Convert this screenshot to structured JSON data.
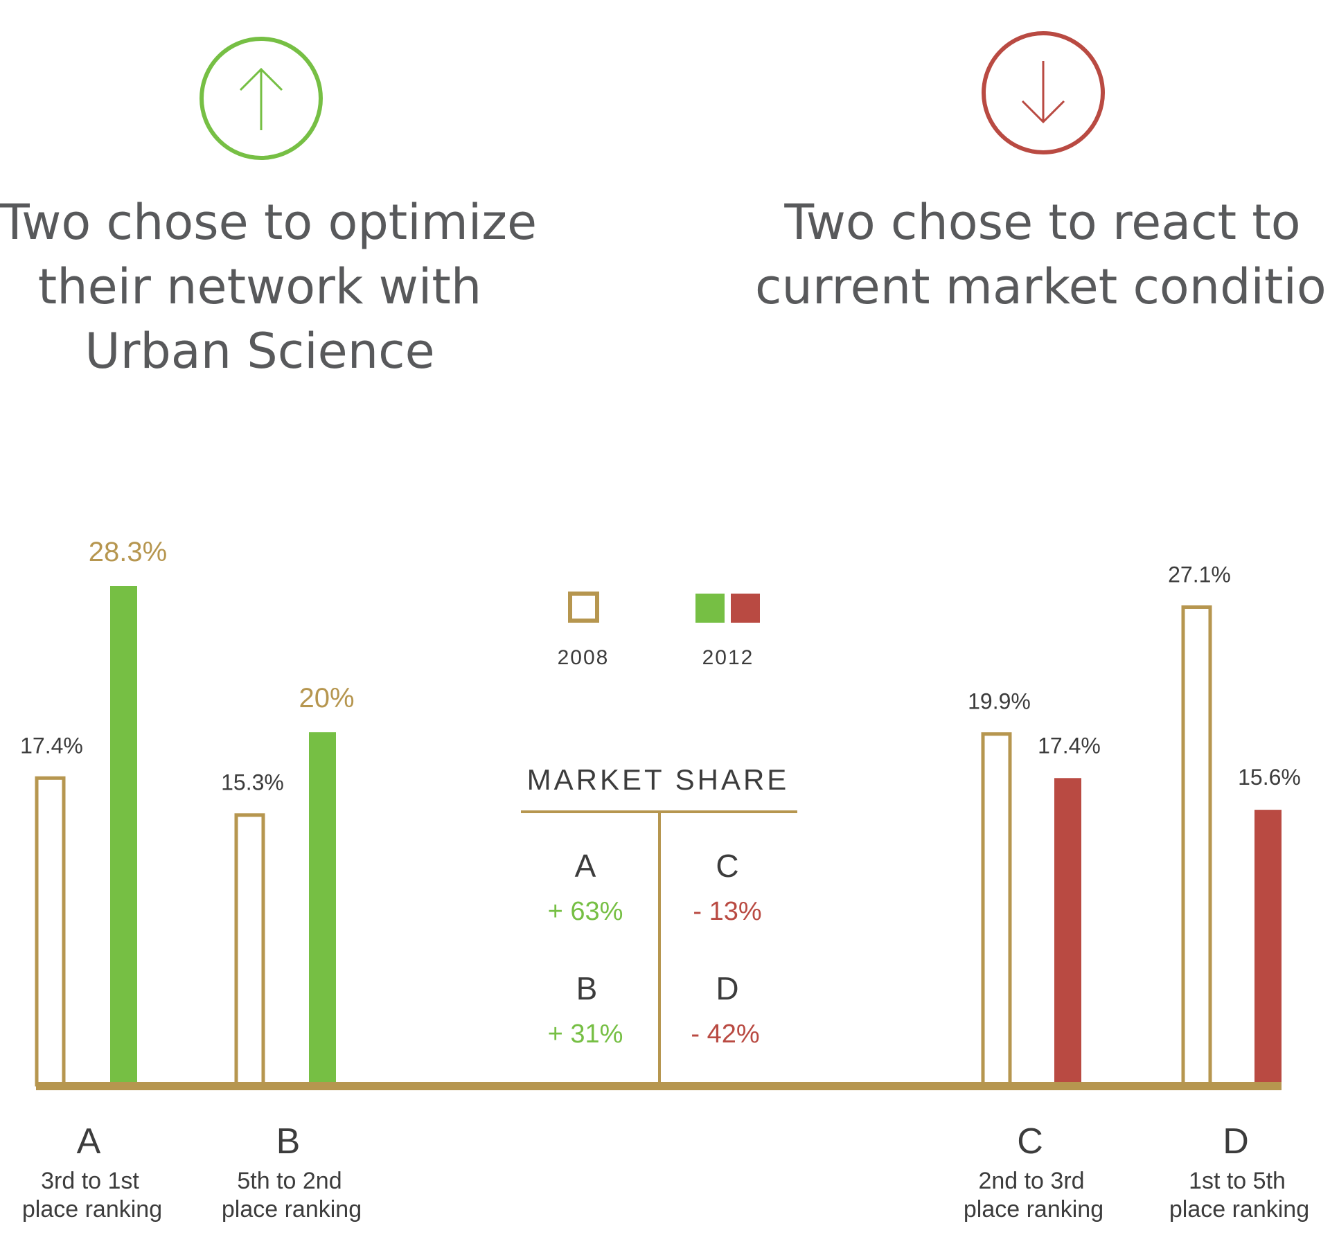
{
  "colors": {
    "gold": "#b6964f",
    "green": "#76bf44",
    "red": "#b94a42",
    "text_dark": "#3c3c3c",
    "headline": "#58595b"
  },
  "left_panel": {
    "icon": "arrow-up-circle-icon",
    "headline_lines": [
      "Two chose to optimize",
      "their network with",
      "Urban Science"
    ]
  },
  "right_panel": {
    "icon": "arrow-down-circle-icon",
    "headline_lines": [
      "Two chose to react to",
      "current market conditions"
    ]
  },
  "legend": {
    "items": [
      {
        "label": "2008",
        "style": "outline"
      },
      {
        "label": "2012",
        "style": "filled-green-red"
      }
    ]
  },
  "market_share_table": {
    "title": "MARKET SHARE",
    "left_column": [
      {
        "name": "A",
        "change": "+ 63%"
      },
      {
        "name": "B",
        "change": "+ 31%"
      }
    ],
    "right_column": [
      {
        "name": "C",
        "change": "- 13%"
      },
      {
        "name": "D",
        "change": "- 42%"
      }
    ]
  },
  "chart_data": {
    "type": "bar",
    "categories": [
      "A",
      "B",
      "C",
      "D"
    ],
    "category_sublabels": [
      [
        "3rd to 1st",
        "place ranking"
      ],
      [
        "5th to 2nd",
        "place ranking"
      ],
      [
        "2nd to 3rd",
        "place ranking"
      ],
      [
        "1st to 5th",
        "place ranking"
      ]
    ],
    "series": [
      {
        "name": "2008",
        "values": [
          17.4,
          15.3,
          19.9,
          27.1
        ],
        "labels": [
          "17.4%",
          "15.3%",
          "19.9%",
          "27.1%"
        ]
      },
      {
        "name": "2012",
        "values": [
          28.3,
          20.0,
          17.4,
          15.6
        ],
        "labels": [
          "28.3%",
          "20%",
          "17.4%",
          "15.6%"
        ]
      }
    ],
    "ylim": [
      0,
      28.3
    ],
    "grid": false,
    "legend": "center-top"
  }
}
